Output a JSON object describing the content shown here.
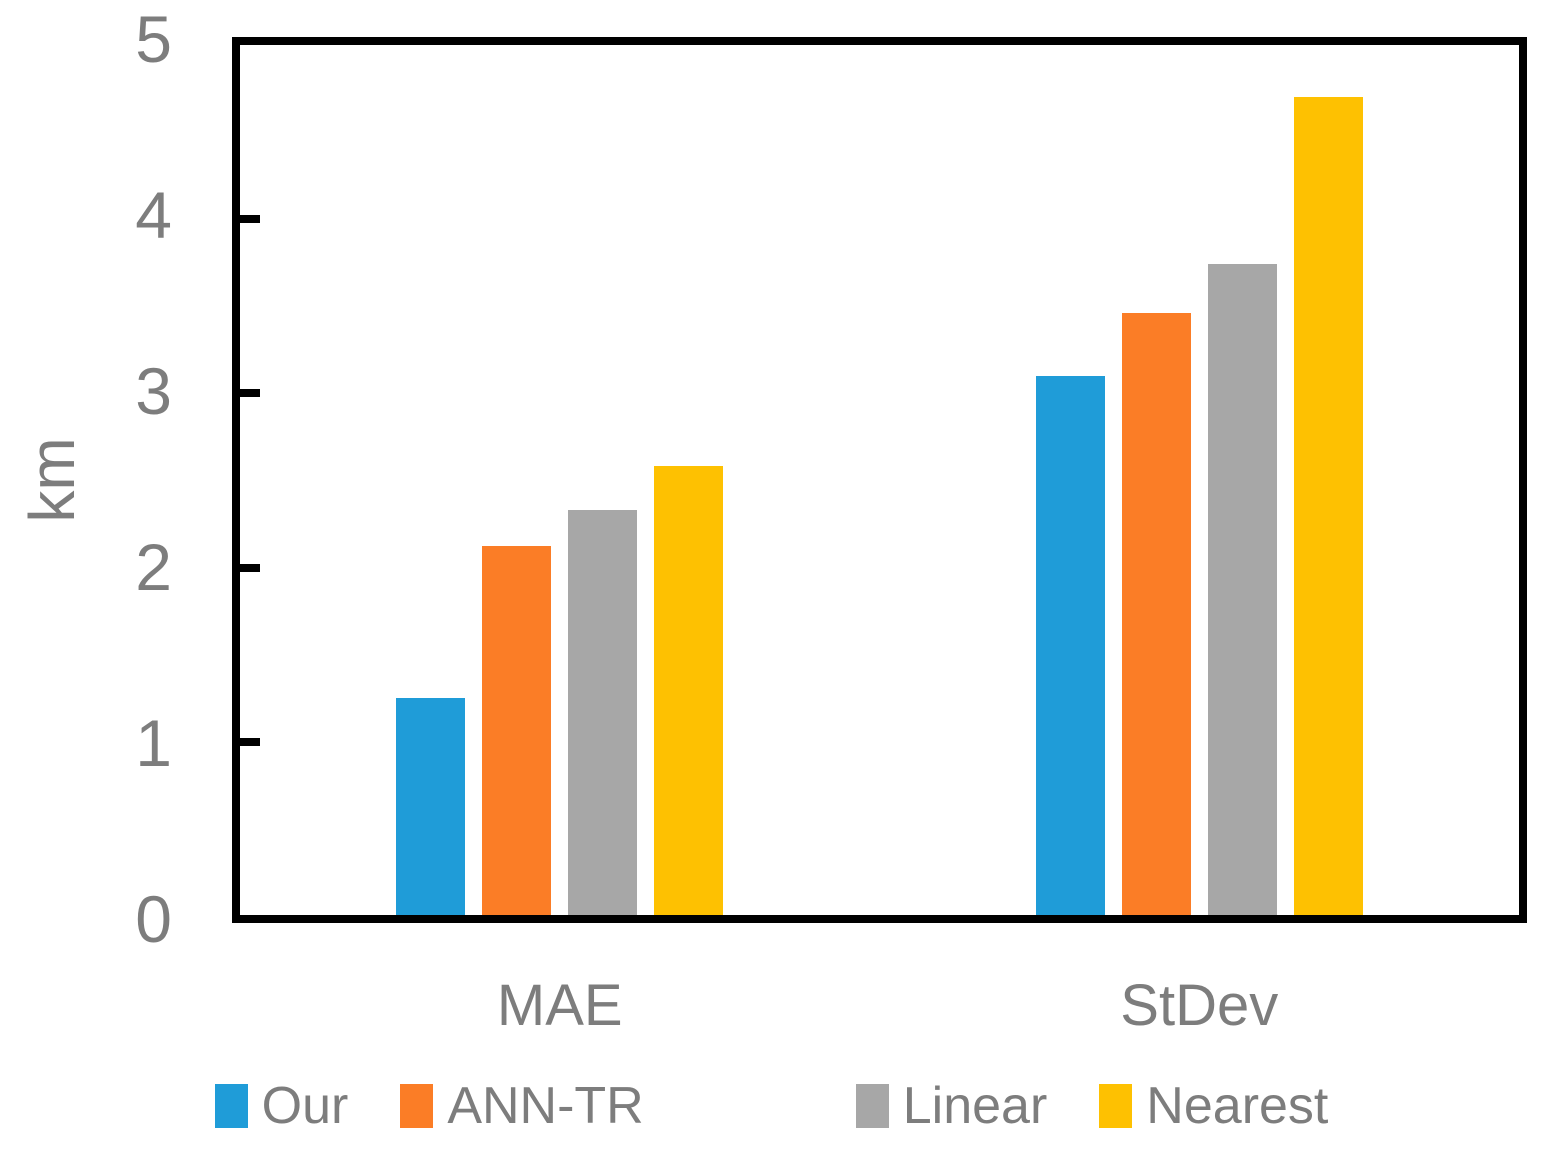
{
  "chart_data": {
    "type": "bar",
    "title": "",
    "categories": [
      "MAE",
      "StDev"
    ],
    "series": [
      {
        "name": "Our",
        "color": "#1F9CD8",
        "values": [
          1.25,
          3.1
        ]
      },
      {
        "name": "ANN-TR",
        "color": "#FB7D26",
        "values": [
          2.12,
          3.46
        ]
      },
      {
        "name": "Linear",
        "color": "#A7A7A7",
        "values": [
          2.33,
          3.74
        ]
      },
      {
        "name": "Nearest",
        "color": "#FEC101",
        "values": [
          2.58,
          4.7
        ]
      }
    ],
    "xlabel": "",
    "ylabel": "km",
    "ylim": [
      0,
      5
    ],
    "yticks": [
      0,
      1,
      2,
      3,
      4,
      5
    ],
    "grid": false,
    "legend_position": "bottom"
  },
  "style": {
    "axis_color": "#000000",
    "text_color": "#7D7D7D",
    "background": "#FFFFFF"
  }
}
